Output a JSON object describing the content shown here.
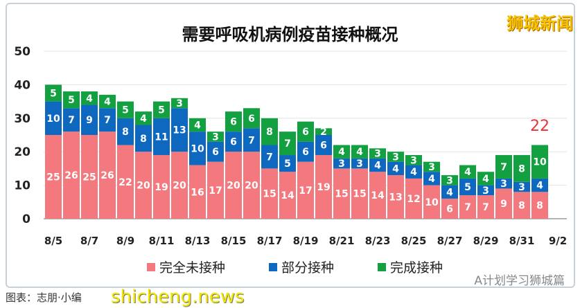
{
  "brand": "狮城新闻",
  "caption": "图表：志朋·小编",
  "watermark": "shicheng.news",
  "wechat": "A计划学习狮城篇",
  "chart_data": {
    "type": "bar",
    "stacked": true,
    "title": "需要呼吸机病例疫苗接种概况",
    "categories": [
      "8/5",
      "8/6",
      "8/7",
      "8/8",
      "8/9",
      "8/10",
      "8/11",
      "8/12",
      "8/13",
      "8/14",
      "8/15",
      "8/16",
      "8/17",
      "8/18",
      "8/19",
      "8/20",
      "8/21",
      "8/22",
      "8/23",
      "8/24",
      "8/25",
      "8/26",
      "8/27",
      "8/28",
      "8/29",
      "8/30",
      "8/31",
      "9/1"
    ],
    "x_tick_labels": [
      "8/5",
      "8/7",
      "8/9",
      "8/11",
      "8/13",
      "8/15",
      "8/17",
      "8/19",
      "8/21",
      "8/23",
      "8/25",
      "8/27",
      "8/29",
      "8/31",
      "9/2"
    ],
    "ylim": [
      0,
      50
    ],
    "y_ticks": [
      0,
      10,
      20,
      30,
      40,
      50
    ],
    "grid": true,
    "legend": "bottom",
    "series": [
      {
        "name": "完全未接种",
        "color": "#f4797e",
        "values": [
          25,
          26,
          25,
          26,
          22,
          20,
          19,
          20,
          16,
          17,
          20,
          20,
          15,
          14,
          17,
          19,
          15,
          15,
          14,
          13,
          12,
          10,
          6,
          7,
          7,
          9,
          8,
          8
        ]
      },
      {
        "name": "部分接种",
        "color": "#0f68c0",
        "values": [
          10,
          7,
          9,
          7,
          8,
          8,
          11,
          13,
          10,
          6,
          6,
          7,
          7,
          5,
          6,
          6,
          3,
          3,
          4,
          4,
          4,
          4,
          4,
          5,
          3,
          3,
          3,
          4
        ]
      },
      {
        "name": "完成接种",
        "color": "#12a040",
        "values": [
          5,
          5,
          4,
          4,
          5,
          4,
          5,
          3,
          4,
          3,
          6,
          6,
          8,
          7,
          6,
          2,
          4,
          4,
          3,
          3,
          3,
          3,
          3,
          4,
          4,
          7,
          8,
          10
        ]
      }
    ],
    "annotation": {
      "label": "22",
      "category": "9/1",
      "color": "#e8333a"
    }
  }
}
